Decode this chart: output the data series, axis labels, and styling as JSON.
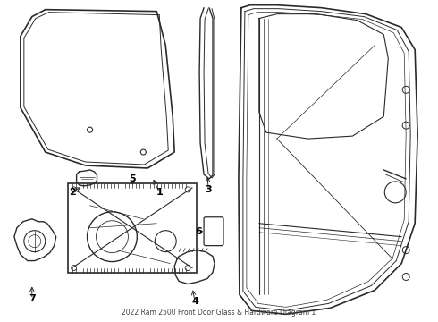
{
  "title": "2022 Ram 2500 Front Door Glass & Hardware Diagram 1",
  "bg_color": "#ffffff",
  "line_color": "#2a2a2a",
  "label_color": "#000000",
  "fig_width": 4.9,
  "fig_height": 3.6,
  "dpi": 100
}
